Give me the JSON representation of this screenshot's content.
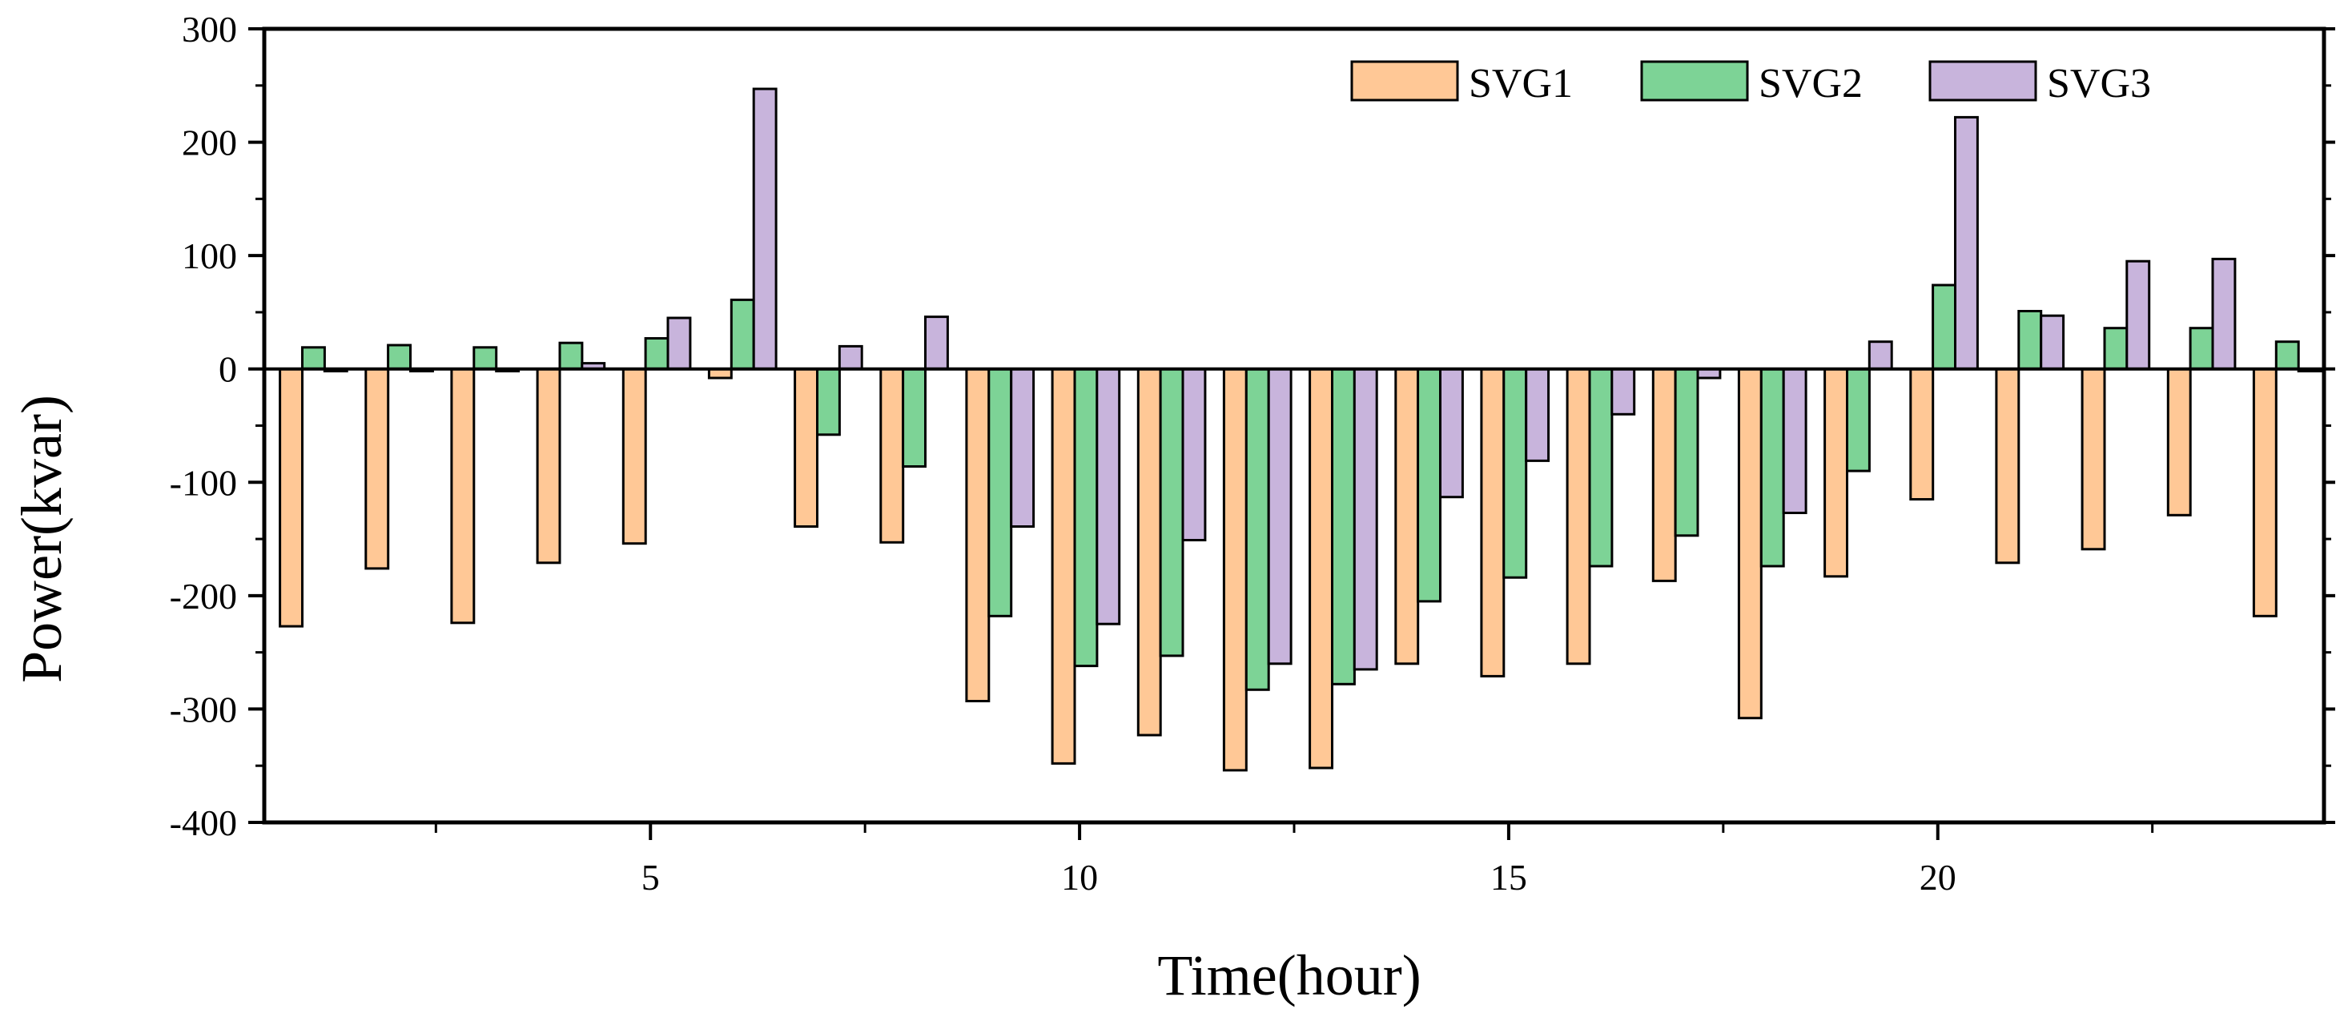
{
  "chart_data": {
    "type": "bar",
    "title": "",
    "xlabel": "Time(hour)",
    "ylabel": "Power(kvar)",
    "ylim": [
      -400,
      300
    ],
    "xlim": [
      0.5,
      24.5
    ],
    "yticks": [
      -400,
      -300,
      -200,
      -100,
      0,
      100,
      200,
      300
    ],
    "ytick_labels": [
      "-400",
      "-300",
      "-200",
      "-100",
      "0",
      "100",
      "200",
      "300"
    ],
    "xticks": [
      5,
      10,
      15,
      20
    ],
    "xtick_labels": [
      "5",
      "10",
      "15",
      "20"
    ],
    "legend_position": "top-right",
    "categories": [
      1,
      2,
      3,
      4,
      5,
      6,
      7,
      8,
      9,
      10,
      11,
      12,
      13,
      14,
      15,
      16,
      17,
      18,
      19,
      20,
      21,
      22,
      23,
      24
    ],
    "series": [
      {
        "name": "SVG1",
        "color": "#FFC896",
        "values": [
          -227,
          -176,
          -224,
          -171,
          -154,
          -8,
          -139,
          -153,
          -293,
          -348,
          -323,
          -354,
          -352,
          -260,
          -271,
          -260,
          -187,
          -308,
          -183,
          -115,
          -171,
          -159,
          -129,
          -218
        ]
      },
      {
        "name": "SVG2",
        "color": "#7DD396",
        "values": [
          19,
          21,
          19,
          23,
          27,
          61,
          -58,
          -86,
          -218,
          -262,
          -253,
          -283,
          -278,
          -205,
          -184,
          -174,
          -147,
          -174,
          -90,
          74,
          51,
          36,
          36,
          24
        ]
      },
      {
        "name": "SVG3",
        "color": "#C8B4DC",
        "values": [
          -2,
          -2,
          -2,
          5,
          45,
          247,
          20,
          46,
          -139,
          -225,
          -151,
          -260,
          -265,
          -113,
          -81,
          -40,
          -8,
          -127,
          24,
          222,
          47,
          95,
          97,
          -2
        ]
      }
    ]
  }
}
